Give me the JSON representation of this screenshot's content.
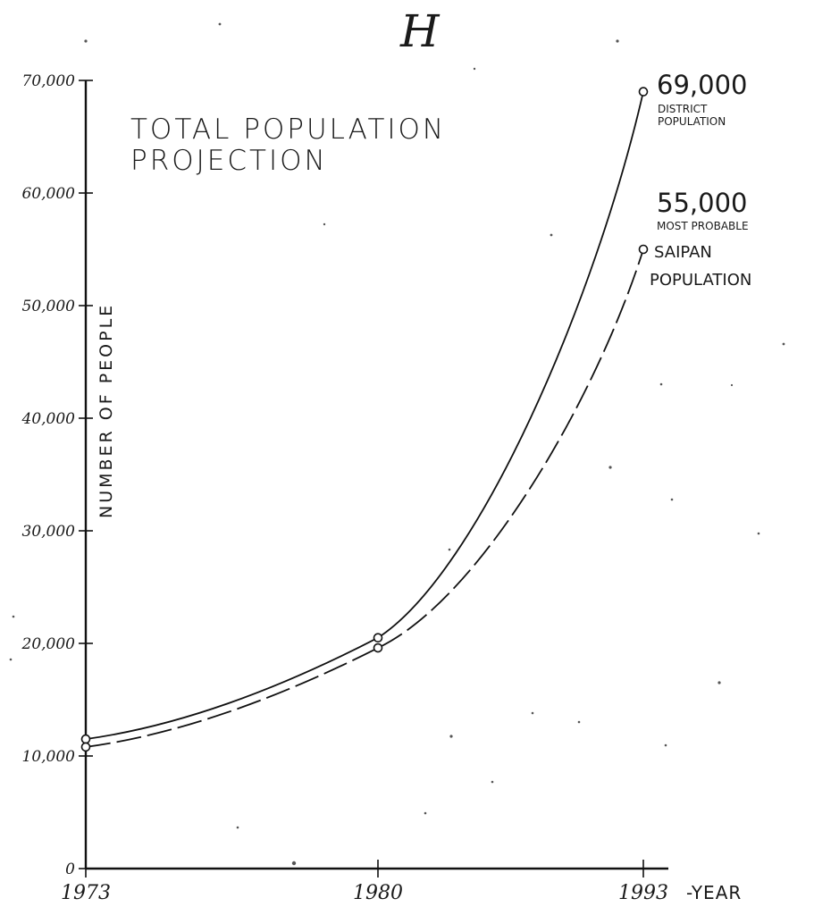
{
  "page_letter": "H",
  "chart_data": {
    "type": "line",
    "title": "TOTAL POPULATION PROJECTION",
    "title_lines": [
      "TOTAL POPULATION",
      "PROJECTION"
    ],
    "xlabel": "-YEAR",
    "ylabel": "NUMBER OF PEOPLE",
    "x": [
      1973,
      1980,
      1993
    ],
    "xtick_labels": [
      "1973",
      "1980",
      "1993"
    ],
    "yticks": [
      0,
      10000,
      20000,
      30000,
      40000,
      50000,
      60000,
      70000
    ],
    "ytick_labels": [
      "0",
      "10,000",
      "20,000",
      "30,000",
      "40,000",
      "50,000",
      "60,000",
      "70,000"
    ],
    "ylim": [
      0,
      70000
    ],
    "grid": false,
    "series": [
      {
        "name": "DISTRICT POPULATION",
        "name_lines": [
          "DISTRICT",
          "POPULATION"
        ],
        "style": "solid",
        "values": [
          11500,
          20500,
          69000
        ],
        "end_label": "69,000"
      },
      {
        "name": "MOST PROBABLE SAIPAN POPULATION",
        "name_lines": [
          "MOST PROBABLE",
          "SAIPAN",
          "POPULATION"
        ],
        "style": "dashed",
        "values": [
          10800,
          19600,
          55000
        ],
        "end_label": "55,000"
      }
    ]
  }
}
